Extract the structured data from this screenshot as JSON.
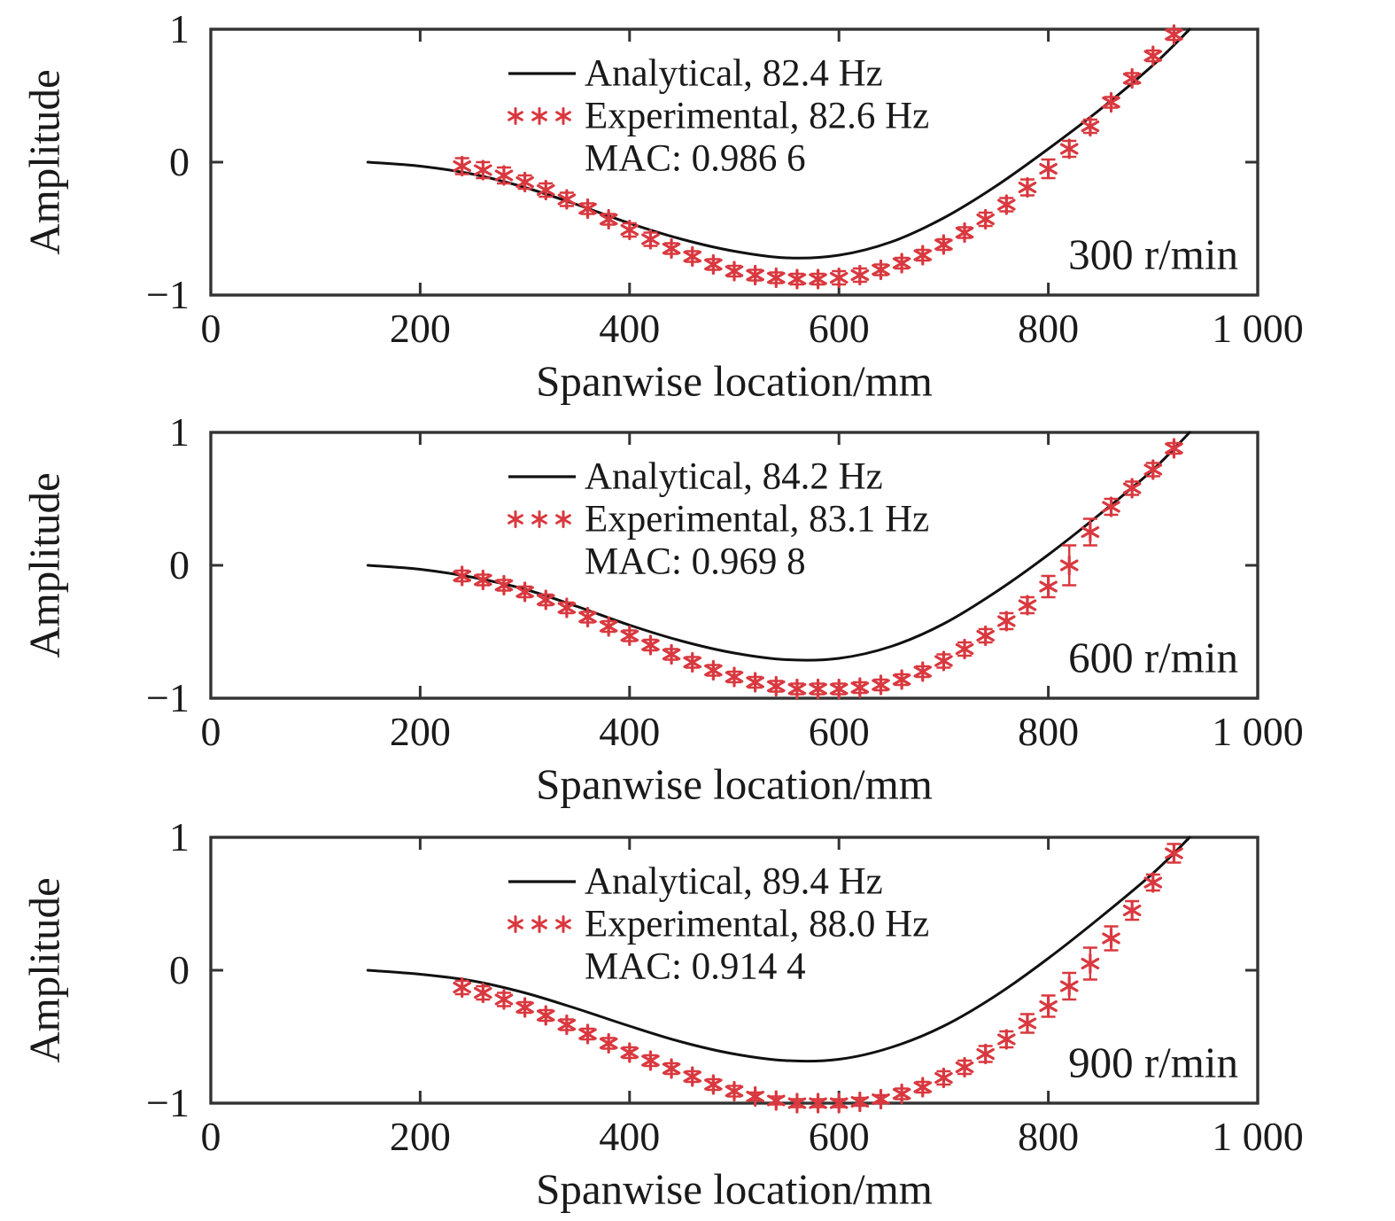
{
  "figure": {
    "background": "#ffffff",
    "box_color": "#333333",
    "text_color": "#1a1a1a"
  },
  "axes": {
    "xlabel": "Spanwise location/mm",
    "ylabel": "Amplitude",
    "x_ticks": [
      0,
      200,
      400,
      600,
      800,
      1000
    ],
    "x_tick_labels": [
      "0",
      "200",
      "400",
      "600",
      "800",
      "1 000"
    ],
    "y_ticks": [
      1,
      0,
      -1
    ],
    "y_tick_labels": [
      "1",
      "0",
      "−1"
    ],
    "xlim": [
      0,
      1000
    ],
    "ylim": [
      -1,
      1
    ]
  },
  "chart_data": [
    {
      "type": "line+scatter-errorbar",
      "rpm_label": "300 r/min",
      "xlabel": "Spanwise location/mm",
      "ylabel": "Amplitude",
      "xlim": [
        0,
        1000
      ],
      "ylim": [
        -1,
        1
      ],
      "legend_position": "upper-center",
      "legend": {
        "analytical_label": "Analytical, 82.4 Hz",
        "experimental_label": "Experimental, 82.6 Hz",
        "mac_label": "MAC: 0.986 6"
      },
      "series": [
        {
          "name": "Analytical",
          "type": "line",
          "color": "#111111",
          "x": [
            150,
            200,
            250,
            300,
            350,
            400,
            450,
            500,
            550,
            600,
            650,
            700,
            750,
            800,
            850,
            900,
            935
          ],
          "y": [
            0.0,
            -0.03,
            -0.09,
            -0.19,
            -0.32,
            -0.46,
            -0.58,
            -0.67,
            -0.72,
            -0.7,
            -0.6,
            -0.42,
            -0.18,
            0.1,
            0.4,
            0.73,
            1.0
          ]
        },
        {
          "name": "Experimental",
          "type": "scatter-errorbar",
          "color": "#d9383f",
          "x": [
            240,
            260,
            280,
            300,
            320,
            340,
            360,
            380,
            400,
            420,
            440,
            460,
            480,
            500,
            520,
            540,
            560,
            580,
            600,
            620,
            640,
            660,
            680,
            700,
            720,
            740,
            760,
            780,
            800,
            820,
            840,
            860,
            880,
            900,
            920
          ],
          "y": [
            -0.03,
            -0.06,
            -0.1,
            -0.15,
            -0.21,
            -0.28,
            -0.35,
            -0.43,
            -0.51,
            -0.58,
            -0.65,
            -0.71,
            -0.77,
            -0.82,
            -0.85,
            -0.87,
            -0.88,
            -0.88,
            -0.87,
            -0.85,
            -0.81,
            -0.76,
            -0.7,
            -0.62,
            -0.53,
            -0.43,
            -0.32,
            -0.19,
            -0.05,
            0.1,
            0.27,
            0.45,
            0.63,
            0.8,
            0.96
          ],
          "yerr": [
            0.06,
            0.06,
            0.06,
            0.05,
            0.05,
            0.05,
            0.04,
            0.04,
            0.05,
            0.05,
            0.04,
            0.04,
            0.04,
            0.04,
            0.04,
            0.04,
            0.04,
            0.04,
            0.05,
            0.05,
            0.04,
            0.04,
            0.04,
            0.04,
            0.04,
            0.05,
            0.05,
            0.06,
            0.07,
            0.06,
            0.05,
            0.04,
            0.04,
            0.04,
            0.04
          ]
        }
      ]
    },
    {
      "type": "line+scatter-errorbar",
      "rpm_label": "600 r/min",
      "xlabel": "Spanwise location/mm",
      "ylabel": "Amplitude",
      "xlim": [
        0,
        1000
      ],
      "ylim": [
        -1,
        1
      ],
      "legend_position": "upper-center",
      "legend": {
        "analytical_label": "Analytical, 84.2 Hz",
        "experimental_label": "Experimental, 83.1 Hz",
        "mac_label": "MAC: 0.969 8"
      },
      "series": [
        {
          "name": "Analytical",
          "type": "line",
          "color": "#111111",
          "x": [
            150,
            200,
            250,
            300,
            350,
            400,
            450,
            500,
            550,
            600,
            650,
            700,
            750,
            800,
            850,
            900,
            935
          ],
          "y": [
            0.0,
            -0.03,
            -0.09,
            -0.18,
            -0.31,
            -0.45,
            -0.57,
            -0.66,
            -0.71,
            -0.7,
            -0.61,
            -0.44,
            -0.2,
            0.08,
            0.39,
            0.72,
            1.0
          ]
        },
        {
          "name": "Experimental",
          "type": "scatter-errorbar",
          "color": "#d9383f",
          "x": [
            240,
            260,
            280,
            300,
            320,
            340,
            360,
            380,
            400,
            420,
            440,
            460,
            480,
            500,
            520,
            540,
            560,
            580,
            600,
            620,
            640,
            660,
            680,
            700,
            720,
            740,
            760,
            780,
            800,
            820,
            840,
            860,
            880,
            900,
            920
          ],
          "y": [
            -0.08,
            -0.11,
            -0.15,
            -0.2,
            -0.26,
            -0.32,
            -0.39,
            -0.46,
            -0.53,
            -0.6,
            -0.67,
            -0.73,
            -0.79,
            -0.84,
            -0.88,
            -0.91,
            -0.93,
            -0.93,
            -0.93,
            -0.92,
            -0.9,
            -0.86,
            -0.8,
            -0.72,
            -0.63,
            -0.53,
            -0.42,
            -0.3,
            -0.16,
            0.0,
            0.25,
            0.44,
            0.58,
            0.72,
            0.88
          ],
          "yerr": [
            0.04,
            0.04,
            0.04,
            0.04,
            0.04,
            0.04,
            0.04,
            0.04,
            0.04,
            0.04,
            0.04,
            0.04,
            0.04,
            0.04,
            0.04,
            0.04,
            0.04,
            0.04,
            0.04,
            0.04,
            0.04,
            0.04,
            0.04,
            0.05,
            0.05,
            0.05,
            0.06,
            0.06,
            0.08,
            0.15,
            0.1,
            0.06,
            0.05,
            0.05,
            0.04
          ]
        }
      ]
    },
    {
      "type": "line+scatter-errorbar",
      "rpm_label": "900 r/min",
      "xlabel": "Spanwise location/mm",
      "ylabel": "Amplitude",
      "xlim": [
        0,
        1000
      ],
      "ylim": [
        -1,
        1
      ],
      "legend_position": "upper-center",
      "legend": {
        "analytical_label": "Analytical, 89.4 Hz",
        "experimental_label": "Experimental, 88.0 Hz",
        "mac_label": "MAC: 0.914 4"
      },
      "series": [
        {
          "name": "Analytical",
          "type": "line",
          "color": "#111111",
          "x": [
            150,
            200,
            250,
            300,
            350,
            400,
            450,
            500,
            550,
            600,
            650,
            700,
            750,
            800,
            850,
            900,
            935
          ],
          "y": [
            0.0,
            -0.03,
            -0.08,
            -0.17,
            -0.29,
            -0.42,
            -0.54,
            -0.63,
            -0.68,
            -0.67,
            -0.58,
            -0.42,
            -0.19,
            0.09,
            0.4,
            0.73,
            1.0
          ]
        },
        {
          "name": "Experimental",
          "type": "scatter-errorbar",
          "color": "#d9383f",
          "x": [
            240,
            260,
            280,
            300,
            320,
            340,
            360,
            380,
            400,
            420,
            440,
            460,
            480,
            500,
            520,
            540,
            560,
            580,
            600,
            620,
            640,
            660,
            680,
            700,
            720,
            740,
            760,
            780,
            800,
            820,
            840,
            860,
            880,
            900,
            920
          ],
          "y": [
            -0.13,
            -0.17,
            -0.22,
            -0.28,
            -0.34,
            -0.41,
            -0.48,
            -0.55,
            -0.62,
            -0.68,
            -0.74,
            -0.8,
            -0.86,
            -0.91,
            -0.95,
            -0.98,
            -1.0,
            -1.0,
            -1.0,
            -0.99,
            -0.97,
            -0.93,
            -0.88,
            -0.81,
            -0.73,
            -0.63,
            -0.52,
            -0.4,
            -0.27,
            -0.12,
            0.05,
            0.24,
            0.45,
            0.66,
            0.88
          ],
          "yerr": [
            0.05,
            0.05,
            0.05,
            0.04,
            0.04,
            0.04,
            0.04,
            0.04,
            0.04,
            0.04,
            0.04,
            0.04,
            0.04,
            0.04,
            0.03,
            0.03,
            0.03,
            0.03,
            0.03,
            0.03,
            0.03,
            0.04,
            0.04,
            0.05,
            0.05,
            0.06,
            0.06,
            0.07,
            0.08,
            0.1,
            0.12,
            0.09,
            0.07,
            0.06,
            0.07
          ]
        }
      ]
    }
  ]
}
